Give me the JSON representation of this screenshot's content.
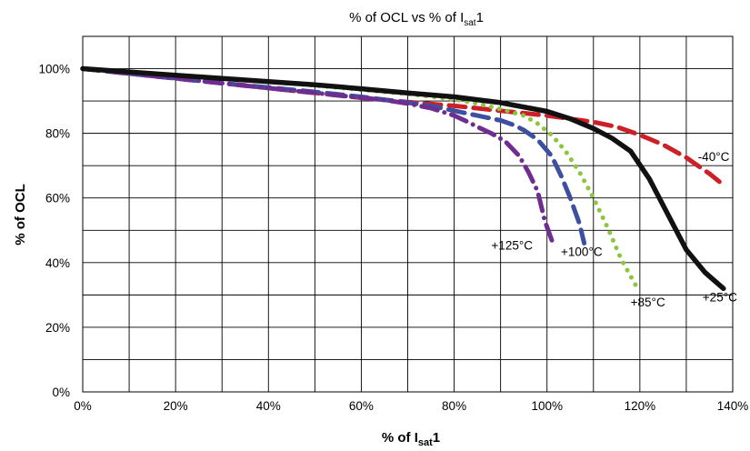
{
  "chart_data": {
    "type": "line",
    "title": {
      "text": "% of OCL vs % of I",
      "sub": "sat",
      "tail": "1"
    },
    "xlabel": {
      "text": "% of  I",
      "sub": "sat",
      "tail": "1"
    },
    "ylabel": "% of OCL",
    "xlim": [
      0,
      140
    ],
    "ylim": [
      0,
      110
    ],
    "grid": true,
    "legend": "none (inline series labels)",
    "x_ticks": [
      0,
      20,
      40,
      60,
      80,
      100,
      120,
      140
    ],
    "x_tick_labels": [
      "0%",
      "20%",
      "40%",
      "60%",
      "80%",
      "100%",
      "120%",
      "140%"
    ],
    "y_ticks": [
      0,
      20,
      40,
      60,
      80,
      100
    ],
    "y_tick_labels": [
      "0%",
      "20%",
      "40%",
      "60%",
      "80%",
      "100%"
    ],
    "series": [
      {
        "name": "-40°C",
        "color": "#cc1f27",
        "style": "dashed",
        "x": [
          0,
          10,
          20,
          30,
          40,
          50,
          60,
          70,
          80,
          90,
          100,
          110,
          115,
          120,
          125,
          130,
          135,
          138
        ],
        "y": [
          100,
          98.5,
          97,
          95.5,
          94,
          92.5,
          91,
          89.7,
          88.5,
          87,
          85.5,
          83.5,
          82,
          79.5,
          76.5,
          72.5,
          67.5,
          64
        ]
      },
      {
        "name": "+25°C",
        "color": "#111111",
        "style": "solid",
        "x": [
          0,
          10,
          20,
          30,
          40,
          50,
          60,
          70,
          80,
          90,
          100,
          105,
          110,
          114,
          118,
          122,
          126,
          130,
          134,
          138
        ],
        "y": [
          100,
          99,
          98,
          97,
          96,
          95,
          93.8,
          92.5,
          91.3,
          89.5,
          86.8,
          84.5,
          81.5,
          78.5,
          74.5,
          66,
          55,
          44,
          37,
          32
        ]
      },
      {
        "name": "+85°C",
        "color": "#8cc63f",
        "style": "dotted",
        "x": [
          10,
          20,
          30,
          40,
          50,
          60,
          70,
          80,
          85,
          90,
          95,
          98,
          101,
          104,
          107,
          110,
          113,
          116,
          119.5
        ],
        "y": [
          99,
          98,
          97,
          96,
          94.8,
          93.5,
          92.2,
          90.5,
          89.2,
          87.5,
          85.5,
          83,
          79.5,
          74.5,
          68,
          60,
          51,
          41,
          32
        ]
      },
      {
        "name": "+100°C",
        "color": "#3d4fa0",
        "style": "dashed",
        "x": [
          0,
          10,
          20,
          30,
          40,
          50,
          60,
          70,
          75,
          80,
          85,
          90,
          93,
          95,
          98,
          101,
          103,
          105,
          107,
          108
        ],
        "y": [
          100,
          98.5,
          97,
          95.5,
          94.2,
          92.8,
          91.3,
          89.5,
          88.5,
          87,
          85.5,
          84,
          82.5,
          81,
          78,
          73,
          67,
          60,
          52,
          46
        ]
      },
      {
        "name": "+125°C",
        "color": "#6f2d91",
        "style": "dashdot",
        "x": [
          0,
          10,
          20,
          30,
          40,
          50,
          60,
          65,
          70,
          75,
          80,
          83,
          85,
          88,
          91,
          94,
          96,
          98,
          99.5,
          101.5
        ],
        "y": [
          100,
          98.5,
          97,
          95.5,
          94,
          92.5,
          91,
          90.3,
          89.2,
          87.8,
          85.5,
          83.5,
          82,
          80,
          77.5,
          73,
          68,
          62,
          53,
          45
        ]
      }
    ],
    "labels": [
      "-40°C",
      "+25°C",
      "+85°C",
      "+100°C",
      "+125°C"
    ]
  }
}
